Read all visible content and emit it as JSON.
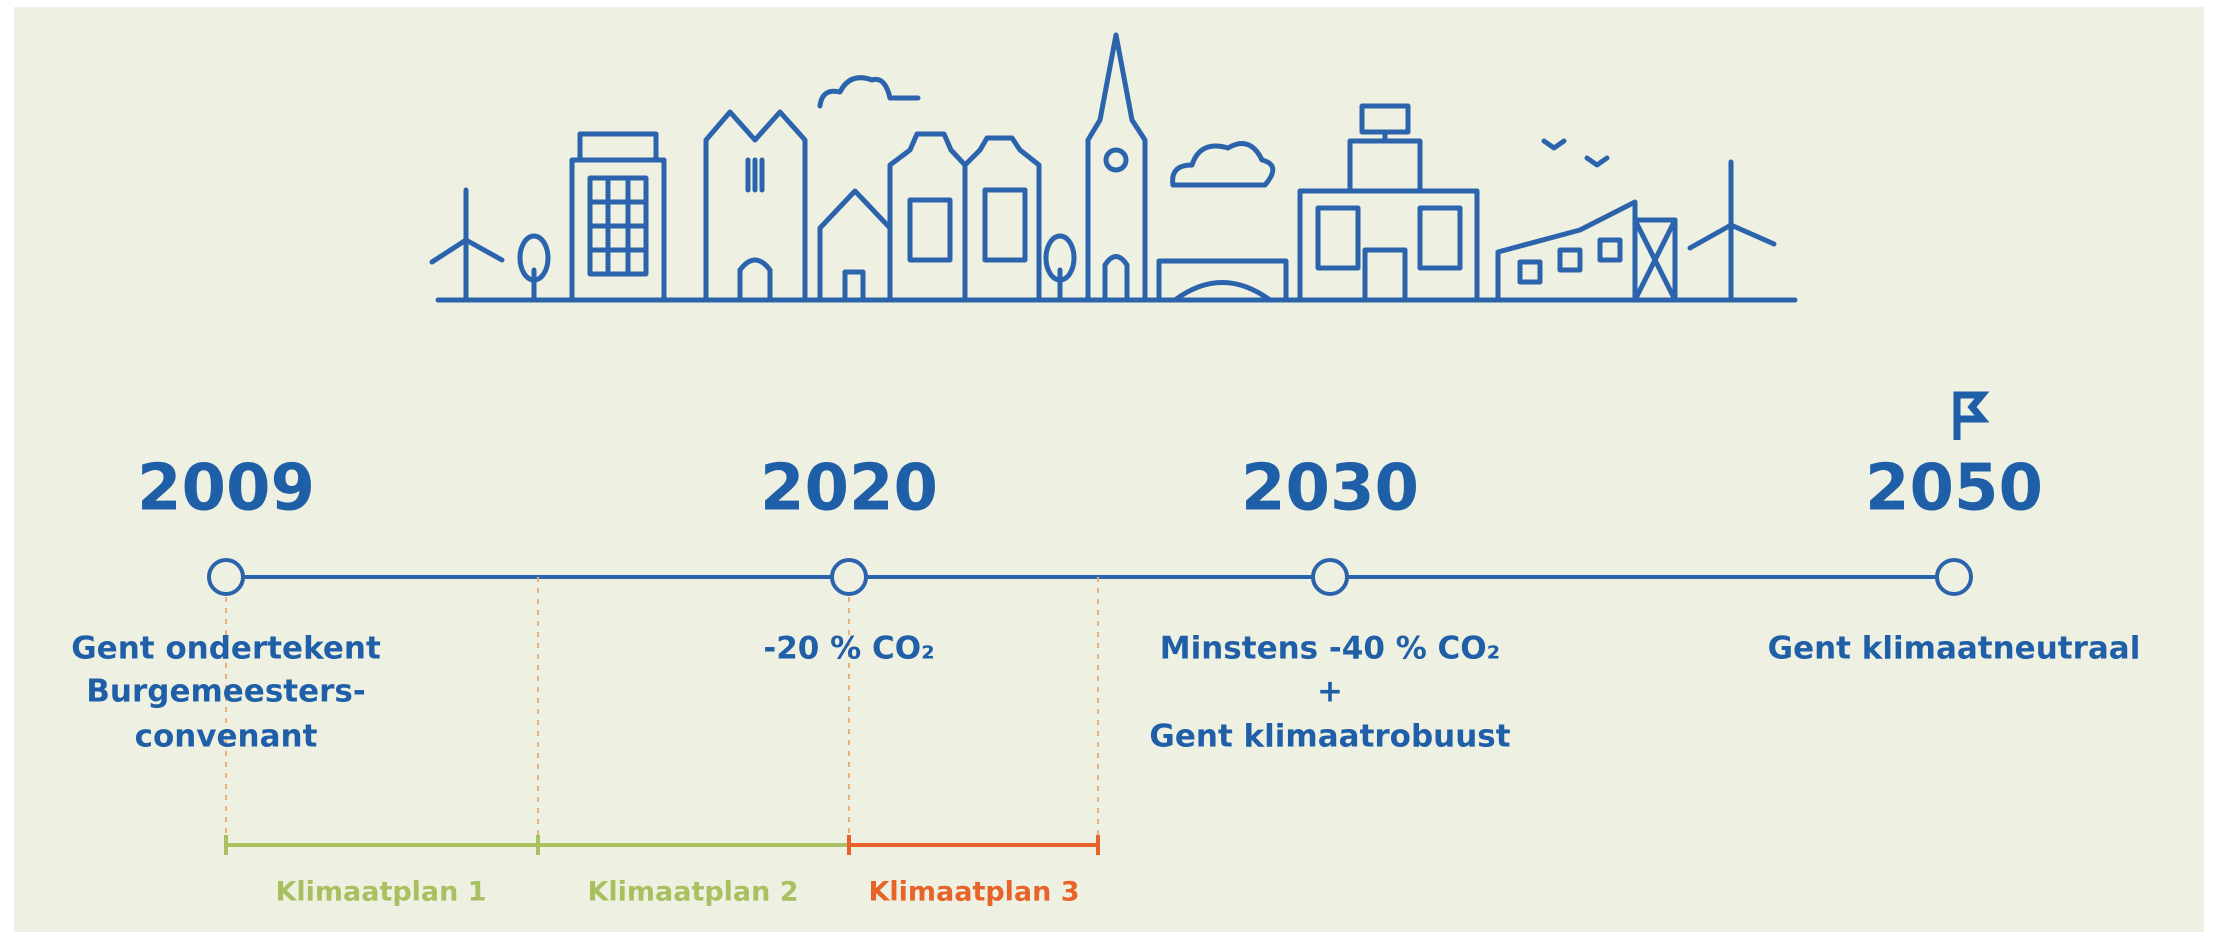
{
  "milestones": [
    {
      "year": "2009",
      "lines": [
        "Gent ondertekent",
        "Burgemeesters-",
        "convenant"
      ]
    },
    {
      "year": "2020",
      "lines": [
        "-20 % CO₂"
      ]
    },
    {
      "year": "2030",
      "lines": [
        "Minstens -40 % CO₂",
        "+",
        "Gent klimaatrobuust"
      ]
    },
    {
      "year": "2050",
      "lines": [
        "Gent klimaatneutraal"
      ]
    }
  ],
  "plans": [
    {
      "label": "Klimaatplan 1"
    },
    {
      "label": "Klimaatplan 2"
    },
    {
      "label": "Klimaatplan 3"
    }
  ]
}
